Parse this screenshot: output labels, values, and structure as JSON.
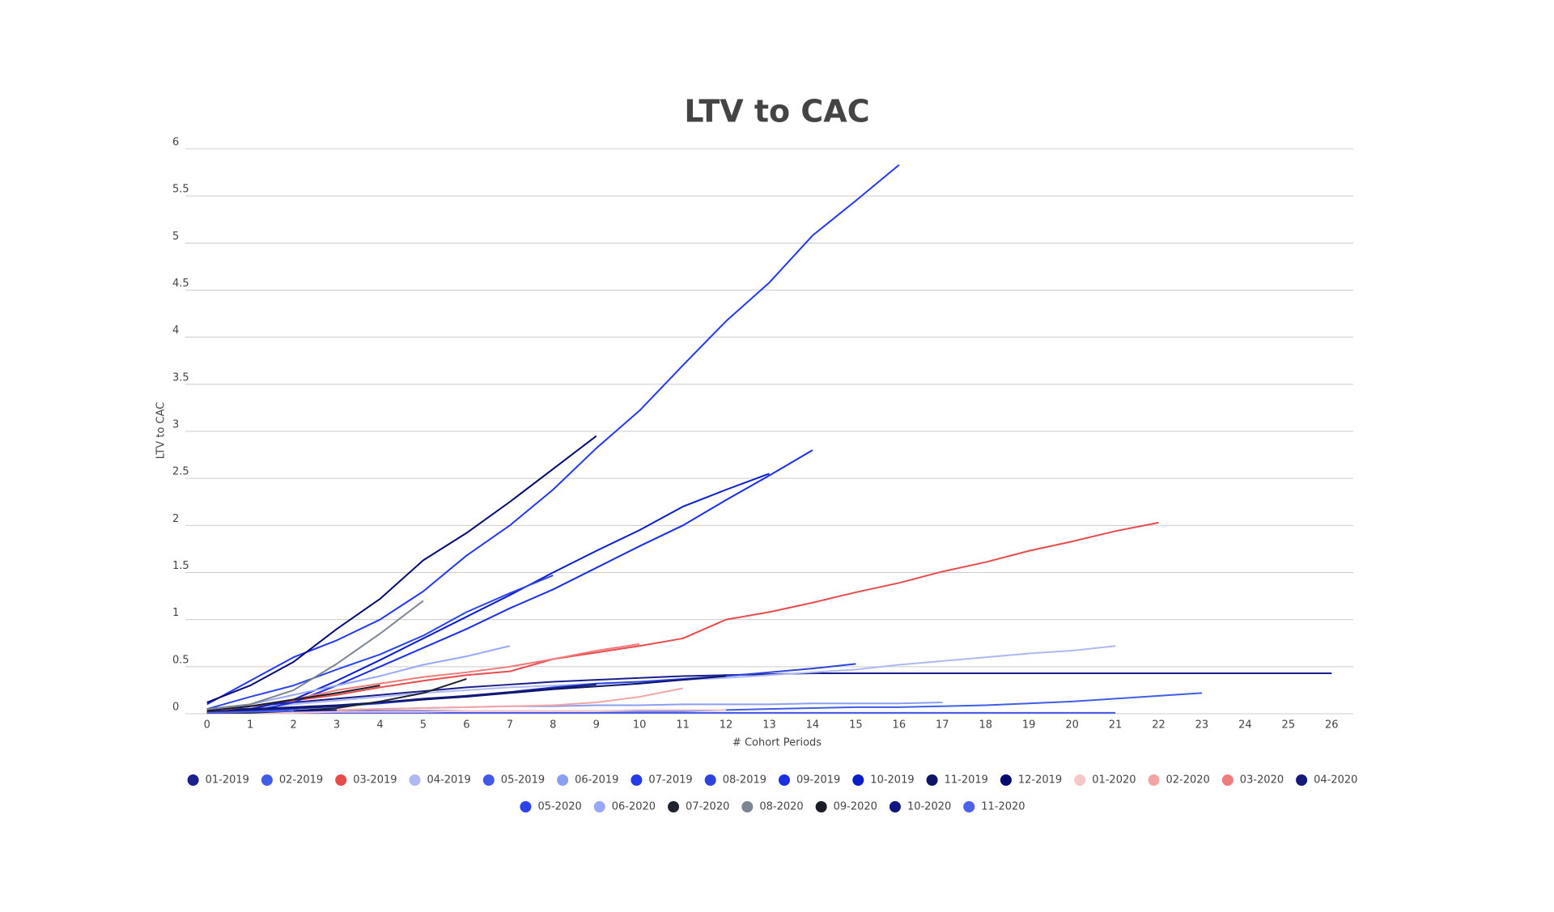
{
  "chart_data": {
    "type": "line",
    "title": "LTV to CAC",
    "x_label": "# Cohort Periods",
    "y_label": "LTV to CAC",
    "categories": [
      0,
      1,
      2,
      3,
      4,
      5,
      6,
      7,
      8,
      9,
      10,
      11,
      12,
      13,
      14,
      15,
      16,
      17,
      18,
      19,
      20,
      21,
      22,
      23,
      24,
      25,
      26
    ],
    "ylim": [
      0,
      6
    ],
    "yticks": [
      0,
      0.5,
      1,
      1.5,
      2,
      2.5,
      3,
      3.5,
      4,
      4.5,
      5,
      5.5,
      6
    ],
    "grid": true,
    "legend": "bottom",
    "series": [
      {
        "name": "01-2019",
        "color": "#1a1f8c",
        "values": [
          0.05,
          0.08,
          0.12,
          0.16,
          0.2,
          0.24,
          0.28,
          0.31,
          0.34,
          0.36,
          0.38,
          0.4,
          0.41,
          0.42,
          0.43,
          0.43,
          0.43,
          0.43,
          0.43,
          0.43,
          0.43,
          0.43,
          0.43,
          0.43,
          0.43,
          0.43,
          0.43
        ]
      },
      {
        "name": "02-2019",
        "color": "#3f5de6",
        "values": [
          0.02,
          0.02,
          0.03,
          0.03,
          0.03,
          0.03,
          0.03,
          0.03,
          0.03,
          0.03,
          0.03,
          0.03,
          0.04,
          0.05,
          0.06,
          0.07,
          0.07,
          0.08,
          0.09,
          0.11,
          0.13,
          0.16,
          0.19,
          0.22,
          null,
          null,
          null
        ]
      },
      {
        "name": "03-2019",
        "color": "#e84b4b",
        "values": [
          0.03,
          0.08,
          0.14,
          0.2,
          0.28,
          0.35,
          0.41,
          0.45,
          0.58,
          0.65,
          0.72,
          0.8,
          1.0,
          1.08,
          1.18,
          1.29,
          1.39,
          1.51,
          1.61,
          1.73,
          1.83,
          1.94,
          2.03,
          null,
          null,
          null,
          null
        ]
      },
      {
        "name": "04-2019",
        "color": "#aeb9f2",
        "values": [
          0.03,
          0.06,
          0.1,
          0.14,
          0.18,
          0.22,
          0.25,
          0.28,
          0.3,
          0.32,
          0.34,
          0.36,
          0.38,
          0.41,
          0.44,
          0.47,
          0.52,
          0.56,
          0.6,
          0.64,
          0.67,
          0.72,
          null,
          null,
          null,
          null,
          null
        ]
      },
      {
        "name": "05-2019",
        "color": "#4358e8",
        "values": [
          0.01,
          0.01,
          0.01,
          0.01,
          0.01,
          0.01,
          0.01,
          0.01,
          0.01,
          0.01,
          0.01,
          0.01,
          0.01,
          0.01,
          0.01,
          0.01,
          0.01,
          0.01,
          0.01,
          0.01,
          0.01,
          0.01,
          null,
          null,
          null,
          null,
          null
        ]
      },
      {
        "name": "06-2019",
        "color": "#8b9ef0",
        "values": [
          0.01,
          0.02,
          0.03,
          0.04,
          0.05,
          0.06,
          0.07,
          0.08,
          0.08,
          0.09,
          0.09,
          0.1,
          0.1,
          0.1,
          0.11,
          0.11,
          0.11,
          0.12,
          null,
          null,
          null,
          null,
          null,
          null,
          null,
          null,
          null
        ]
      },
      {
        "name": "07-2019",
        "color": "#2538ea",
        "values": [
          0.1,
          0.35,
          0.6,
          0.78,
          1.0,
          1.3,
          1.68,
          2.0,
          2.38,
          2.82,
          3.22,
          3.7,
          4.17,
          4.58,
          5.08,
          5.45,
          5.83,
          null,
          null,
          null,
          null,
          null,
          null,
          null,
          null,
          null,
          null
        ]
      },
      {
        "name": "08-2019",
        "color": "#2b42dd",
        "values": [
          0.02,
          0.03,
          0.05,
          0.08,
          0.11,
          0.15,
          0.19,
          0.23,
          0.28,
          0.32,
          0.34,
          0.37,
          0.4,
          0.44,
          0.48,
          0.53,
          null,
          null,
          null,
          null,
          null,
          null,
          null,
          null,
          null,
          null,
          null
        ]
      },
      {
        "name": "09-2019",
        "color": "#1b2fe3",
        "values": [
          0.02,
          0.02,
          0.12,
          0.3,
          0.5,
          0.7,
          0.9,
          1.12,
          1.32,
          1.55,
          1.78,
          2.0,
          2.27,
          2.53,
          2.8,
          null,
          null,
          null,
          null,
          null,
          null,
          null,
          null,
          null,
          null,
          null,
          null
        ]
      },
      {
        "name": "10-2019",
        "color": "#0a1dc9",
        "values": [
          0.05,
          0.05,
          0.15,
          0.35,
          0.57,
          0.8,
          1.03,
          1.26,
          1.5,
          1.73,
          1.95,
          2.2,
          2.38,
          2.55,
          null,
          null,
          null,
          null,
          null,
          null,
          null,
          null,
          null,
          null,
          null,
          null,
          null
        ]
      },
      {
        "name": "11-2019",
        "color": "#0c1466",
        "values": [
          0.03,
          0.05,
          0.07,
          0.09,
          0.12,
          0.15,
          0.18,
          0.22,
          0.26,
          0.29,
          0.32,
          0.36,
          0.4,
          null,
          null,
          null,
          null,
          null,
          null,
          null,
          null,
          null,
          null,
          null,
          null,
          null,
          null
        ]
      },
      {
        "name": "12-2019",
        "color": "#050a70",
        "values": [
          0.12,
          0.3,
          0.55,
          0.9,
          1.22,
          1.63,
          1.92,
          2.25,
          2.6,
          2.95,
          null,
          null,
          null,
          null,
          null,
          null,
          null,
          null,
          null,
          null,
          null,
          null,
          null,
          null,
          null,
          null,
          null
        ]
      },
      {
        "name": "01-2020",
        "color": "#f7c6c6",
        "values": [
          0.0,
          0.01,
          0.01,
          0.02,
          0.02,
          0.02,
          0.03,
          0.03,
          0.03,
          0.03,
          0.04,
          0.04,
          0.04,
          null,
          null,
          null,
          null,
          null,
          null,
          null,
          null,
          null,
          null,
          null,
          null,
          null,
          null
        ]
      },
      {
        "name": "02-2020",
        "color": "#f3a5a5",
        "values": [
          0.01,
          0.02,
          0.03,
          0.04,
          0.05,
          0.06,
          0.07,
          0.08,
          0.09,
          0.12,
          0.18,
          0.27,
          null,
          null,
          null,
          null,
          null,
          null,
          null,
          null,
          null,
          null,
          null,
          null,
          null,
          null,
          null
        ]
      },
      {
        "name": "03-2020",
        "color": "#ef7b7b",
        "values": [
          0.02,
          0.08,
          0.15,
          0.25,
          0.32,
          0.39,
          0.44,
          0.5,
          0.58,
          0.67,
          0.74,
          null,
          null,
          null,
          null,
          null,
          null,
          null,
          null,
          null,
          null,
          null,
          null,
          null,
          null,
          null,
          null
        ]
      },
      {
        "name": "04-2020",
        "color": "#131a7a",
        "values": [
          0.02,
          0.04,
          0.06,
          0.08,
          0.12,
          0.16,
          0.19,
          0.23,
          0.27,
          0.31,
          null,
          null,
          null,
          null,
          null,
          null,
          null,
          null,
          null,
          null,
          null,
          null,
          null,
          null,
          null,
          null,
          null
        ]
      },
      {
        "name": "05-2020",
        "color": "#2a44e8",
        "values": [
          0.05,
          0.18,
          0.3,
          0.47,
          0.63,
          0.83,
          1.08,
          1.28,
          1.47,
          null,
          null,
          null,
          null,
          null,
          null,
          null,
          null,
          null,
          null,
          null,
          null,
          null,
          null,
          null,
          null,
          null,
          null
        ]
      },
      {
        "name": "06-2020",
        "color": "#97a8f8",
        "values": [
          0.03,
          0.1,
          0.2,
          0.3,
          0.4,
          0.52,
          0.61,
          0.72,
          null,
          null,
          null,
          null,
          null,
          null,
          null,
          null,
          null,
          null,
          null,
          null,
          null,
          null,
          null,
          null,
          null,
          null,
          null
        ]
      },
      {
        "name": "07-2020",
        "color": "#1f2330",
        "values": [
          0.01,
          0.01,
          0.03,
          0.06,
          0.13,
          0.22,
          0.37,
          null,
          null,
          null,
          null,
          null,
          null,
          null,
          null,
          null,
          null,
          null,
          null,
          null,
          null,
          null,
          null,
          null,
          null,
          null,
          null
        ]
      },
      {
        "name": "08-2020",
        "color": "#7c8592",
        "values": [
          0.05,
          0.1,
          0.25,
          0.53,
          0.85,
          1.2,
          null,
          null,
          null,
          null,
          null,
          null,
          null,
          null,
          null,
          null,
          null,
          null,
          null,
          null,
          null,
          null,
          null,
          null,
          null,
          null,
          null
        ]
      },
      {
        "name": "09-2020",
        "color": "#1a1d28",
        "values": [
          0.03,
          0.08,
          0.15,
          0.22,
          0.3,
          null,
          null,
          null,
          null,
          null,
          null,
          null,
          null,
          null,
          null,
          null,
          null,
          null,
          null,
          null,
          null,
          null,
          null,
          null,
          null,
          null,
          null
        ]
      },
      {
        "name": "10-2020",
        "color": "#0f1680",
        "values": [
          0.01,
          0.02,
          0.03,
          0.04,
          null,
          null,
          null,
          null,
          null,
          null,
          null,
          null,
          null,
          null,
          null,
          null,
          null,
          null,
          null,
          null,
          null,
          null,
          null,
          null,
          null,
          null,
          null
        ]
      },
      {
        "name": "11-2020",
        "color": "#4a62ee",
        "values": [
          0.01,
          0.02,
          0.03,
          null,
          null,
          null,
          null,
          null,
          null,
          null,
          null,
          null,
          null,
          null,
          null,
          null,
          null,
          null,
          null,
          null,
          null,
          null,
          null,
          null,
          null,
          null,
          null
        ]
      }
    ]
  }
}
